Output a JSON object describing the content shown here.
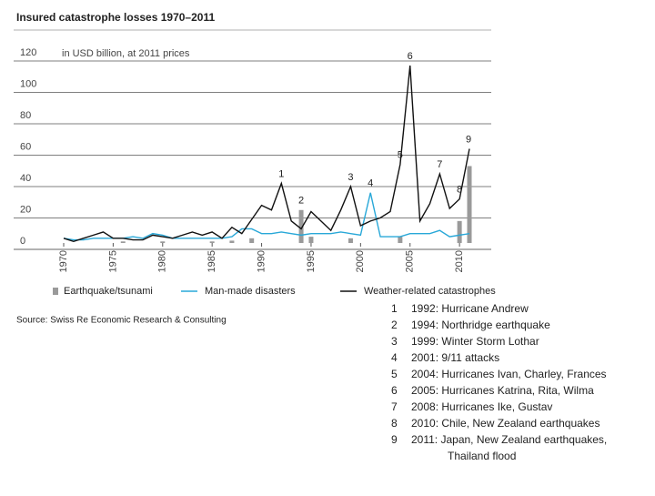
{
  "chart_data": {
    "type": "bar-line",
    "title": "Insured catastrophe losses 1970–2011",
    "y_label": "in USD billion, at 2011 prices",
    "source": "Source: Swiss Re Economic Research & Consulting",
    "x": [
      1970,
      1971,
      1972,
      1973,
      1974,
      1975,
      1976,
      1977,
      1978,
      1979,
      1980,
      1981,
      1982,
      1983,
      1984,
      1985,
      1986,
      1987,
      1988,
      1989,
      1990,
      1991,
      1992,
      1993,
      1994,
      1995,
      1996,
      1997,
      1998,
      1999,
      2000,
      2001,
      2002,
      2003,
      2004,
      2005,
      2006,
      2007,
      2008,
      2009,
      2010,
      2011
    ],
    "xlim": [
      1970,
      2011
    ],
    "xticks": [
      1970,
      1975,
      1980,
      1985,
      1990,
      1995,
      2000,
      2005,
      2010
    ],
    "ylim": [
      0,
      120
    ],
    "yticks": [
      0,
      20,
      40,
      60,
      80,
      100,
      120
    ],
    "grid": true,
    "series": [
      {
        "name": "Earthquake/tsunami",
        "kind": "bar",
        "color": "#9a9a9a",
        "values": [
          0,
          0,
          0,
          0,
          0,
          0,
          1,
          0,
          0,
          0,
          1,
          0,
          0,
          0,
          0,
          1,
          0,
          1.5,
          0,
          3,
          0,
          0,
          0,
          0,
          21,
          4,
          0,
          0,
          0,
          3,
          0,
          0,
          0,
          0,
          4,
          0,
          0,
          0,
          0,
          0,
          14,
          49
        ]
      },
      {
        "name": "Man-made disasters",
        "kind": "line",
        "color": "#29a8d8",
        "values": [
          3,
          2,
          2,
          3,
          3,
          3,
          3,
          4,
          3,
          6,
          5,
          3,
          3,
          3,
          3,
          3,
          3,
          4,
          9,
          9,
          6,
          6,
          7,
          6,
          5,
          6,
          6,
          6,
          7,
          6,
          5,
          32,
          4,
          4,
          4,
          6,
          6,
          6,
          8,
          4,
          5,
          6
        ]
      },
      {
        "name": "Weather-related catastrophes",
        "kind": "line",
        "color": "#111111",
        "values": [
          3,
          1,
          3,
          5,
          7,
          3,
          3,
          2,
          2,
          5,
          4,
          3,
          5,
          7,
          5,
          7,
          3,
          10,
          6,
          15,
          24,
          21,
          38,
          14,
          9,
          20,
          14,
          8,
          21,
          36,
          11,
          14,
          16,
          20,
          50,
          113,
          14,
          25,
          44,
          22,
          28,
          60
        ]
      }
    ],
    "annotations": [
      {
        "text": "1",
        "x": 1992
      },
      {
        "text": "2",
        "x": 1994
      },
      {
        "text": "3",
        "x": 1999
      },
      {
        "text": "4",
        "x": 2001
      },
      {
        "text": "5",
        "x": 2004
      },
      {
        "text": "6",
        "x": 2005
      },
      {
        "text": "7",
        "x": 2008
      },
      {
        "text": "8",
        "x": 2010
      },
      {
        "text": "9",
        "x": 2011
      }
    ],
    "events": [
      {
        "number": "1",
        "text": "1992: Hurricane Andrew"
      },
      {
        "number": "2",
        "text": "1994: Northridge earthquake"
      },
      {
        "number": "3",
        "text": "1999: Winter Storm Lothar"
      },
      {
        "number": "4",
        "text": "2001: 9/11 attacks"
      },
      {
        "number": "5",
        "text": "2004: Hurricanes Ivan, Charley, Frances"
      },
      {
        "number": "6",
        "text": "2005: Hurricanes Katrina, Rita, Wilma"
      },
      {
        "number": "7",
        "text": "2008: Hurricanes Ike, Gustav"
      },
      {
        "number": "8",
        "text": "2010: Chile, New Zealand earthquakes"
      },
      {
        "number": "9",
        "text": "2011: Japan, New Zealand earthquakes, Thailand flood"
      }
    ]
  }
}
